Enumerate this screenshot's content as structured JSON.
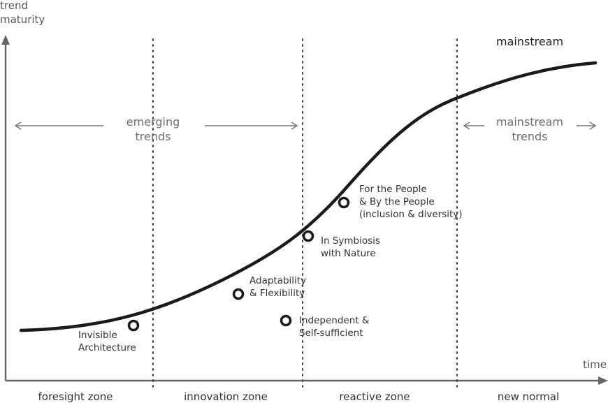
{
  "axes": {
    "y_label_line1": "trend",
    "y_label_line2": "maturity",
    "x_label": "time"
  },
  "curve_label": "mainstream",
  "bands": {
    "emerging_line1": "emerging",
    "emerging_line2": "trends",
    "mainstream_line1": "mainstream",
    "mainstream_line2": "trends"
  },
  "zones": [
    "foresight zone",
    "innovation zone",
    "reactive zone",
    "new normal"
  ],
  "trends": [
    {
      "line1": "Invisible",
      "line2": "Architecture",
      "line3": ""
    },
    {
      "line1": "Adaptability",
      "line2": "& Flexibility",
      "line3": ""
    },
    {
      "line1": "Independent &",
      "line2": "Self-sufficient",
      "line3": ""
    },
    {
      "line1": "In Symbiosis",
      "line2": "with Nature",
      "line3": ""
    },
    {
      "line1": "For the People",
      "line2": "& By the People",
      "line3": "(inclusion & diversity)"
    }
  ],
  "colors": {
    "curve": "#1a1a1a",
    "axis": "#666666",
    "divider": "#444444",
    "band_arrow": "#777777"
  }
}
